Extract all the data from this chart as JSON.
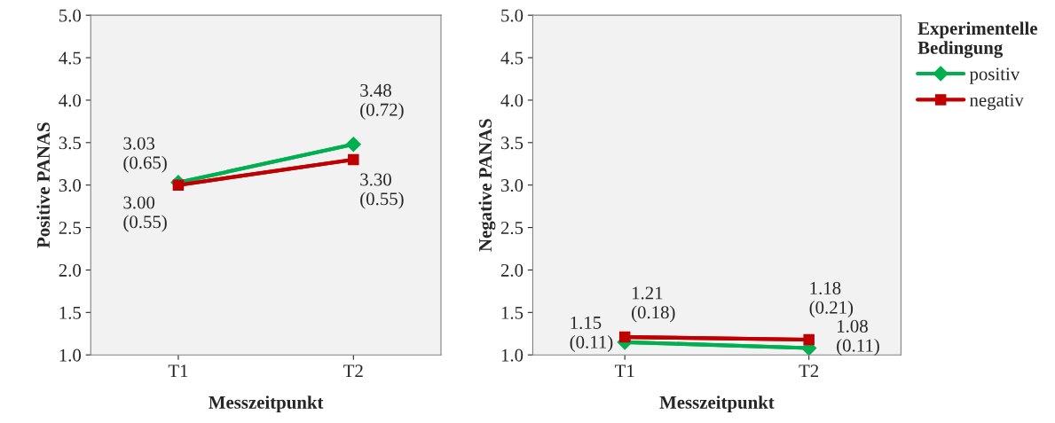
{
  "chart_data": [
    {
      "type": "line",
      "xlabel": "Messzeitpunkt",
      "ylabel": "Positive PANAS",
      "categories": [
        "T1",
        "T2"
      ],
      "ylim": [
        1.0,
        5.0
      ],
      "yticks": [
        {
          "value": 1.0,
          "label": "1.0"
        },
        {
          "value": 1.5,
          "label": "1.5"
        },
        {
          "value": 2.0,
          "label": "2.0"
        },
        {
          "value": 2.5,
          "label": "2.5"
        },
        {
          "value": 3.0,
          "label": "3.0"
        },
        {
          "value": 3.5,
          "label": "3.5"
        },
        {
          "value": 4.0,
          "label": "4.0"
        },
        {
          "value": 4.5,
          "label": "4.5"
        },
        {
          "value": 5.0,
          "label": "5.0"
        }
      ],
      "grid": false,
      "series": [
        {
          "color": "#00b050",
          "marker": "diamond",
          "values": [
            3.03,
            3.48
          ],
          "value_labels": [
            "3.03\n(0.65)",
            "3.48\n(0.72)"
          ]
        },
        {
          "color": "#c00000",
          "marker": "square",
          "values": [
            3.0,
            3.3
          ],
          "value_labels": [
            "3.00\n(0.55)",
            "3.30\n(0.55)"
          ]
        }
      ]
    },
    {
      "type": "line",
      "xlabel": "Messzeitpunkt",
      "ylabel": "Negative PANAS",
      "legend_title": "Experimentelle\nBedingung",
      "categories": [
        "T1",
        "T2"
      ],
      "ylim": [
        1.0,
        5.0
      ],
      "yticks": [
        {
          "value": 1.0,
          "label": "1.0"
        },
        {
          "value": 1.5,
          "label": "1.5"
        },
        {
          "value": 2.0,
          "label": "2.0"
        },
        {
          "value": 2.5,
          "label": "2.5"
        },
        {
          "value": 3.0,
          "label": "3.0"
        },
        {
          "value": 3.5,
          "label": "3.5"
        },
        {
          "value": 4.0,
          "label": "4.0"
        },
        {
          "value": 4.5,
          "label": "4.5"
        },
        {
          "value": 5.0,
          "label": "5.0"
        }
      ],
      "grid": false,
      "legend": "right",
      "series": [
        {
          "name": "positiv",
          "color": "#00b050",
          "marker": "diamond",
          "values": [
            1.15,
            1.08
          ],
          "value_labels": [
            "1.15\n(0.11)",
            "1.08\n(0.11)"
          ]
        },
        {
          "name": "negativ",
          "color": "#c00000",
          "marker": "square",
          "values": [
            1.21,
            1.18
          ],
          "value_labels": [
            "1.21\n(0.18)",
            "1.18\n(0.21)"
          ]
        }
      ]
    }
  ]
}
